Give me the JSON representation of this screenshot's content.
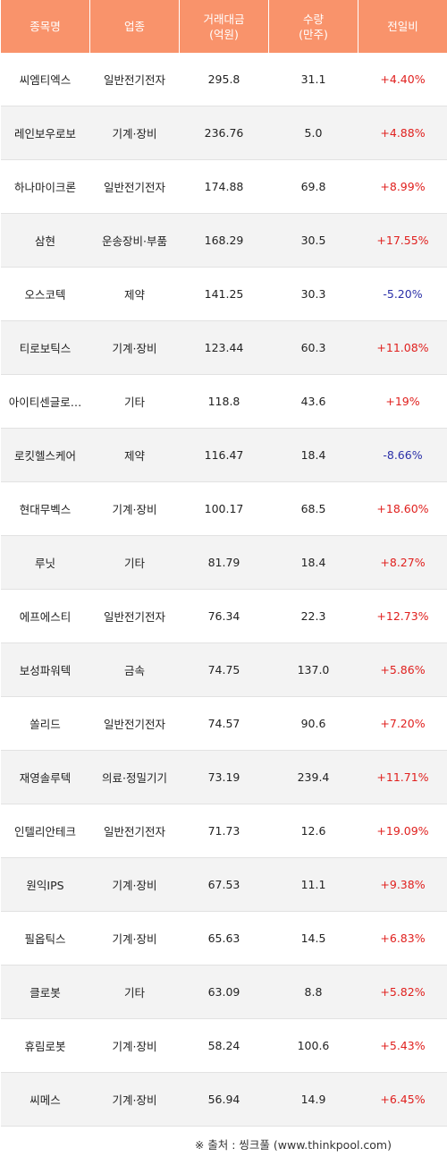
{
  "colors": {
    "header_bg": "#f9936b",
    "up": "#e0201e",
    "down": "#2a2fa8",
    "stripe": "#f3f3f3"
  },
  "headers": {
    "name": "종목명",
    "sector": "업종",
    "amount_line1": "거래대금",
    "amount_line2": "(억원)",
    "volume_line1": "수량",
    "volume_line2": "(만주)",
    "change": "전일비"
  },
  "rows": [
    {
      "name": "씨엠티엑스",
      "sector": "일반전기전자",
      "amount": "295.8",
      "volume": "31.1",
      "change": "+4.40%",
      "dir": "up"
    },
    {
      "name": "레인보우로보",
      "sector": "기계·장비",
      "amount": "236.76",
      "volume": "5.0",
      "change": "+4.88%",
      "dir": "up"
    },
    {
      "name": "하나마이크론",
      "sector": "일반전기전자",
      "amount": "174.88",
      "volume": "69.8",
      "change": "+8.99%",
      "dir": "up"
    },
    {
      "name": "삼현",
      "sector": "운송장비·부품",
      "amount": "168.29",
      "volume": "30.5",
      "change": "+17.55%",
      "dir": "up"
    },
    {
      "name": "오스코텍",
      "sector": "제약",
      "amount": "141.25",
      "volume": "30.3",
      "change": "-5.20%",
      "dir": "down"
    },
    {
      "name": "티로보틱스",
      "sector": "기계·장비",
      "amount": "123.44",
      "volume": "60.3",
      "change": "+11.08%",
      "dir": "up"
    },
    {
      "name": "아이티센글로…",
      "sector": "기타",
      "amount": "118.8",
      "volume": "43.6",
      "change": "+19%",
      "dir": "up"
    },
    {
      "name": "로킷헬스케어",
      "sector": "제약",
      "amount": "116.47",
      "volume": "18.4",
      "change": "-8.66%",
      "dir": "down"
    },
    {
      "name": "현대무벡스",
      "sector": "기계·장비",
      "amount": "100.17",
      "volume": "68.5",
      "change": "+18.60%",
      "dir": "up"
    },
    {
      "name": "루닛",
      "sector": "기타",
      "amount": "81.79",
      "volume": "18.4",
      "change": "+8.27%",
      "dir": "up"
    },
    {
      "name": "에프에스티",
      "sector": "일반전기전자",
      "amount": "76.34",
      "volume": "22.3",
      "change": "+12.73%",
      "dir": "up"
    },
    {
      "name": "보성파워텍",
      "sector": "금속",
      "amount": "74.75",
      "volume": "137.0",
      "change": "+5.86%",
      "dir": "up"
    },
    {
      "name": "쏠리드",
      "sector": "일반전기전자",
      "amount": "74.57",
      "volume": "90.6",
      "change": "+7.20%",
      "dir": "up"
    },
    {
      "name": "재영솔루텍",
      "sector": "의료·정밀기기",
      "amount": "73.19",
      "volume": "239.4",
      "change": "+11.71%",
      "dir": "up"
    },
    {
      "name": "인텔리안테크",
      "sector": "일반전기전자",
      "amount": "71.73",
      "volume": "12.6",
      "change": "+19.09%",
      "dir": "up"
    },
    {
      "name": "원익IPS",
      "sector": "기계·장비",
      "amount": "67.53",
      "volume": "11.1",
      "change": "+9.38%",
      "dir": "up"
    },
    {
      "name": "필옵틱스",
      "sector": "기계·장비",
      "amount": "65.63",
      "volume": "14.5",
      "change": "+6.83%",
      "dir": "up"
    },
    {
      "name": "클로봇",
      "sector": "기타",
      "amount": "63.09",
      "volume": "8.8",
      "change": "+5.82%",
      "dir": "up"
    },
    {
      "name": "휴림로봇",
      "sector": "기계·장비",
      "amount": "58.24",
      "volume": "100.6",
      "change": "+5.43%",
      "dir": "up"
    },
    {
      "name": "씨메스",
      "sector": "기계·장비",
      "amount": "56.94",
      "volume": "14.9",
      "change": "+6.45%",
      "dir": "up"
    }
  ],
  "source": "※ 출처 : 씽크풀 (www.thinkpool.com)"
}
